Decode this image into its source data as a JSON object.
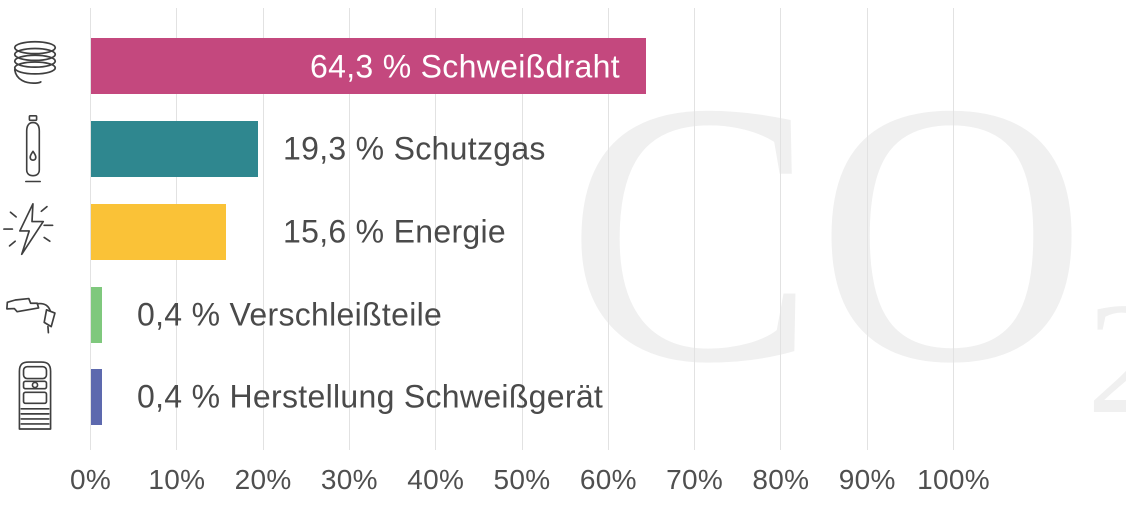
{
  "chart_data": {
    "type": "bar",
    "orientation": "horizontal",
    "title": "",
    "xlabel": "",
    "ylabel": "",
    "xlim": [
      0,
      100
    ],
    "grid": "vertical",
    "legend": "none",
    "watermark_main": "CO",
    "watermark_sub": "2",
    "categories": [
      "Schweißdraht",
      "Schutzgas",
      "Energie",
      "Verschleißteile",
      "Herstellung Schweißgerät"
    ],
    "values": [
      64.3,
      19.3,
      15.6,
      0.4,
      0.4
    ],
    "labels": [
      "64,3 % Schweißdraht",
      "19,3 % Schutzgas",
      "15,6 % Energie",
      "0,4 % Verschleißteile",
      "0,4 % Herstellung Schweißgerät"
    ],
    "bar_colors": [
      "#c4487e",
      "#2f878f",
      "#fac237",
      "#7fc87d",
      "#5d69ae"
    ],
    "icons": [
      "wire-spool-icon",
      "gas-bottle-icon",
      "energy-lightning-icon",
      "welding-torch-icon",
      "welding-machine-icon"
    ],
    "x_ticks": [
      "0%",
      "10%",
      "20%",
      "30%",
      "40%",
      "50%",
      "60%",
      "70%",
      "80%",
      "90%",
      "100%"
    ],
    "colors": {
      "background": "#ffffff",
      "label_text": "#4a4a4a",
      "axis_text": "#4f4f4f",
      "gridline": "#e2e2e2",
      "watermark": "#f0f0f0",
      "bar_label_inside": "#ffffff",
      "icon_stroke": "#3f3f3f"
    }
  }
}
